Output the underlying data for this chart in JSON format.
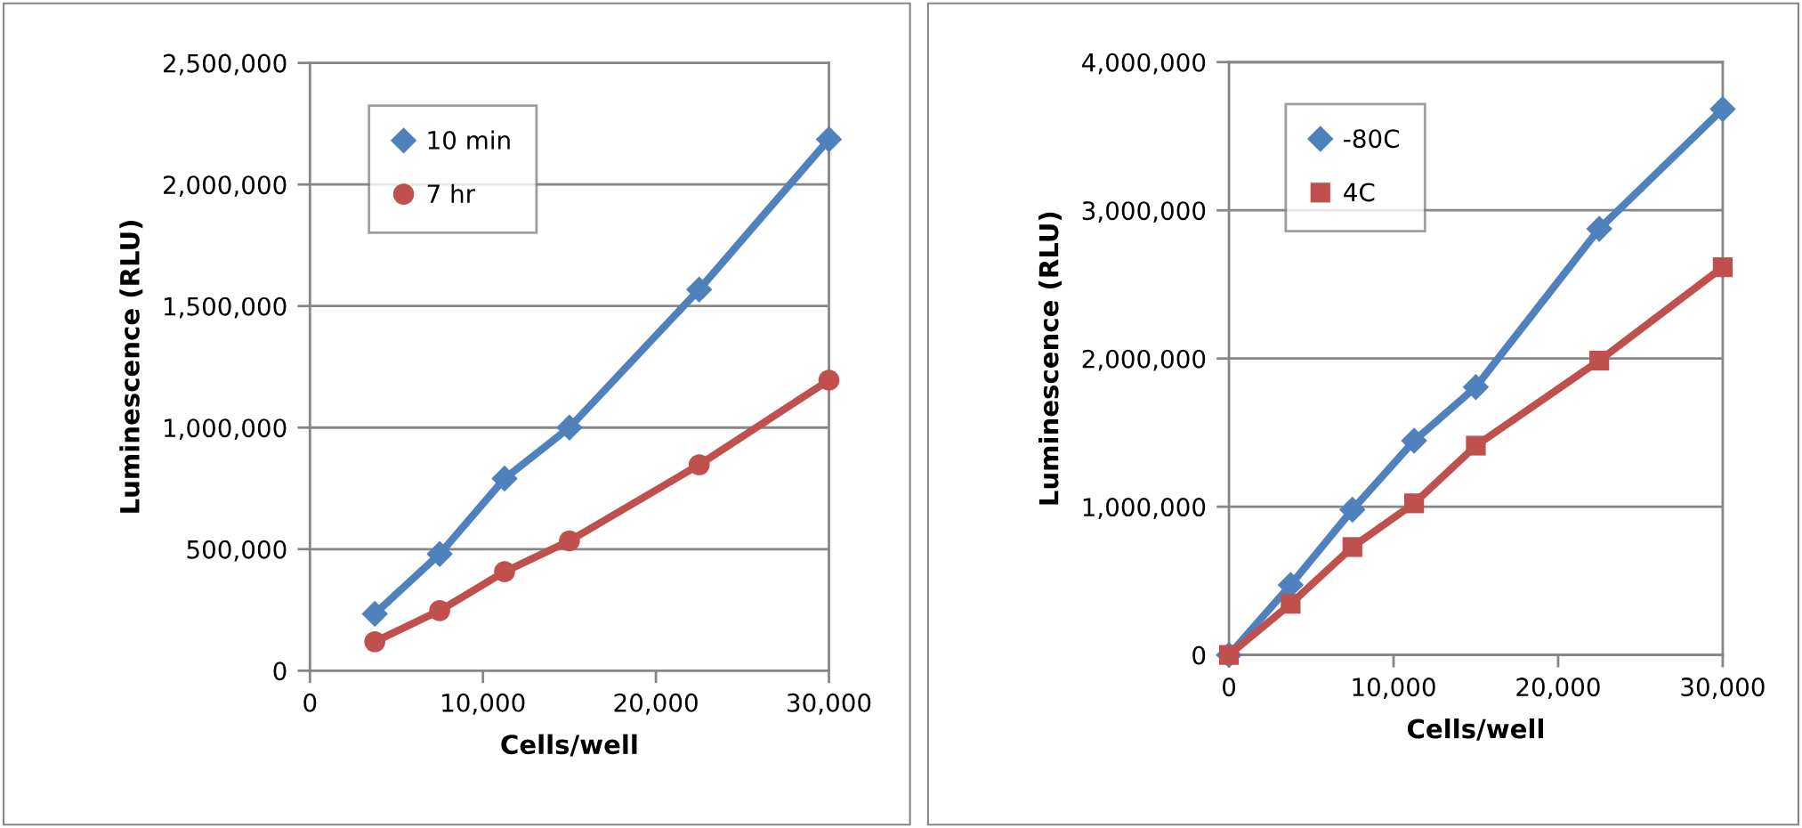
{
  "chart_data": [
    {
      "type": "line",
      "xlabel": "Cells/well",
      "ylabel": "Luminescence (RLU)",
      "xlim": [
        0,
        30000
      ],
      "xticks": [
        {
          "value": 0,
          "label": "0"
        },
        {
          "value": 10000,
          "label": "10,000"
        },
        {
          "value": 20000,
          "label": "20,000"
        },
        {
          "value": 30000,
          "label": "30,000"
        }
      ],
      "ylim": [
        0,
        2500000
      ],
      "yticks": [
        {
          "value": 0,
          "label": "0"
        },
        {
          "value": 500000,
          "label": "500,000"
        },
        {
          "value": 1000000,
          "label": "1,000,000"
        },
        {
          "value": 1500000,
          "label": "1,500,000"
        },
        {
          "value": 2000000,
          "label": "2,000,000"
        },
        {
          "value": 2500000,
          "label": "2,500,000"
        }
      ],
      "grid": "y",
      "legend": "top left",
      "line_style": "solid",
      "x": [
        3750,
        7500,
        11250,
        15000,
        22500,
        30000
      ],
      "series": [
        {
          "name": "10 min",
          "color": "#4f81bd",
          "marker": "diamond",
          "values": [
            234000,
            480000,
            790000,
            1000000,
            1568000,
            2186000
          ]
        },
        {
          "name": "7 hr",
          "color": "#c0504d",
          "marker": "circle",
          "values": [
            119000,
            247000,
            407000,
            534000,
            847000,
            1195000
          ]
        }
      ]
    },
    {
      "type": "line",
      "xlabel": "Cells/well",
      "ylabel": "Luminescence (RLU)",
      "xlim": [
        0,
        30000
      ],
      "xticks": [
        {
          "value": 0,
          "label": "0"
        },
        {
          "value": 10000,
          "label": "10,000"
        },
        {
          "value": 20000,
          "label": "20,000"
        },
        {
          "value": 30000,
          "label": "30,000"
        }
      ],
      "ylim": [
        0,
        4000000
      ],
      "yticks": [
        {
          "value": 0,
          "label": "0"
        },
        {
          "value": 1000000,
          "label": "1,000,000"
        },
        {
          "value": 2000000,
          "label": "2,000,000"
        },
        {
          "value": 3000000,
          "label": "3,000,000"
        },
        {
          "value": 4000000,
          "label": "4,000,000"
        }
      ],
      "grid": "y",
      "legend": "top left",
      "line_style": "solid",
      "x": [
        0,
        3750,
        7500,
        11250,
        15000,
        22500,
        30000
      ],
      "series": [
        {
          "name": "-80C",
          "color": "#4f81bd",
          "marker": "diamond",
          "values": [
            0,
            473000,
            980000,
            1445000,
            1808000,
            2875000,
            3683000
          ]
        },
        {
          "name": "4C",
          "color": "#c0504d",
          "marker": "square",
          "values": [
            0,
            345000,
            728000,
            1023000,
            1412000,
            1986000,
            2616000
          ]
        }
      ]
    }
  ]
}
